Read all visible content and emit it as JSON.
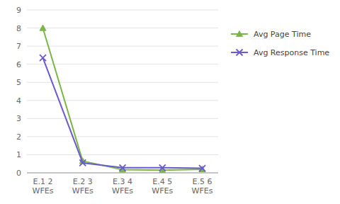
{
  "chart_data": {
    "type": "line",
    "categories": [
      "E.1 2\nWFEs",
      "E.2 3\nWFEs",
      "E.3 4\nWFEs",
      "E.4 5\nWFEs",
      "E.5 6\nWFEs"
    ],
    "series": [
      {
        "name": "Avg Page Time",
        "color": "#7ab648",
        "marker": "triangle",
        "values": [
          8.0,
          0.65,
          0.18,
          0.15,
          0.2
        ]
      },
      {
        "name": "Avg Response Time",
        "color": "#6a5acd",
        "marker": "x",
        "values": [
          6.35,
          0.55,
          0.28,
          0.28,
          0.25
        ]
      }
    ],
    "ylim": [
      0,
      9
    ],
    "yticks": [
      0,
      1,
      2,
      3,
      4,
      5,
      6,
      7,
      8,
      9
    ],
    "grid": true,
    "legend": "right"
  }
}
